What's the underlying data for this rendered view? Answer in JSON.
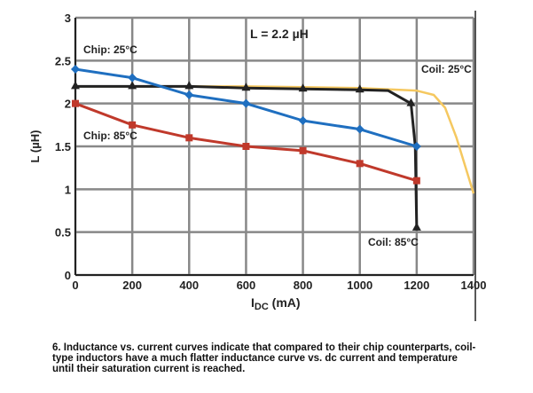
{
  "chart_data": {
    "type": "line",
    "title": "L = 2.2 µH",
    "xlabel_main": "I",
    "xlabel_sub": "DC",
    "xlabel_unit": " (mA)",
    "ylabel": "L (µH)",
    "xlim": [
      0,
      1400
    ],
    "ylim": [
      0,
      3
    ],
    "xticks": [
      "0",
      "200",
      "400",
      "600",
      "800",
      "1000",
      "1200",
      "1400"
    ],
    "yticks": [
      "0",
      "0.5",
      "1",
      "1.5",
      "2",
      "2.5",
      "3"
    ],
    "grid": true,
    "series": [
      {
        "name": "Chip: 25°C",
        "color": "#1f6fc0",
        "marker": "diamond",
        "x": [
          0,
          200,
          400,
          600,
          800,
          1000,
          1200
        ],
        "y": [
          2.4,
          2.3,
          2.1,
          2.0,
          1.8,
          1.7,
          1.5
        ]
      },
      {
        "name": "Chip: 85°C",
        "color": "#c0392b",
        "marker": "square",
        "x": [
          0,
          200,
          400,
          600,
          800,
          1000,
          1200
        ],
        "y": [
          2.0,
          1.75,
          1.6,
          1.5,
          1.45,
          1.3,
          1.1
        ]
      },
      {
        "name": "Coil: 25°C",
        "color": "#f5c860",
        "marker": "none",
        "x": [
          0,
          200,
          400,
          600,
          800,
          1000,
          1200,
          1260,
          1300,
          1340,
          1400
        ],
        "y": [
          2.2,
          2.2,
          2.2,
          2.2,
          2.19,
          2.18,
          2.15,
          2.1,
          1.95,
          1.6,
          0.95
        ]
      },
      {
        "name": "Coil: 85°C",
        "color": "#222222",
        "marker": "triangle",
        "x": [
          0,
          200,
          400,
          600,
          800,
          1000,
          1100,
          1180,
          1195,
          1200
        ],
        "y": [
          2.2,
          2.2,
          2.2,
          2.18,
          2.17,
          2.16,
          2.15,
          2.0,
          1.5,
          0.55
        ],
        "marker_x": [
          0,
          200,
          400,
          600,
          800,
          1000,
          1180,
          1200
        ],
        "marker_y": [
          2.2,
          2.2,
          2.2,
          2.18,
          2.17,
          2.16,
          2.0,
          0.55
        ]
      }
    ]
  },
  "caption": "6. Inductance vs. current curves indicate that compared to their chip counterparts, coil-type inductors have a much flatter inductance curve vs. dc current and temperature until their saturation current is reached."
}
